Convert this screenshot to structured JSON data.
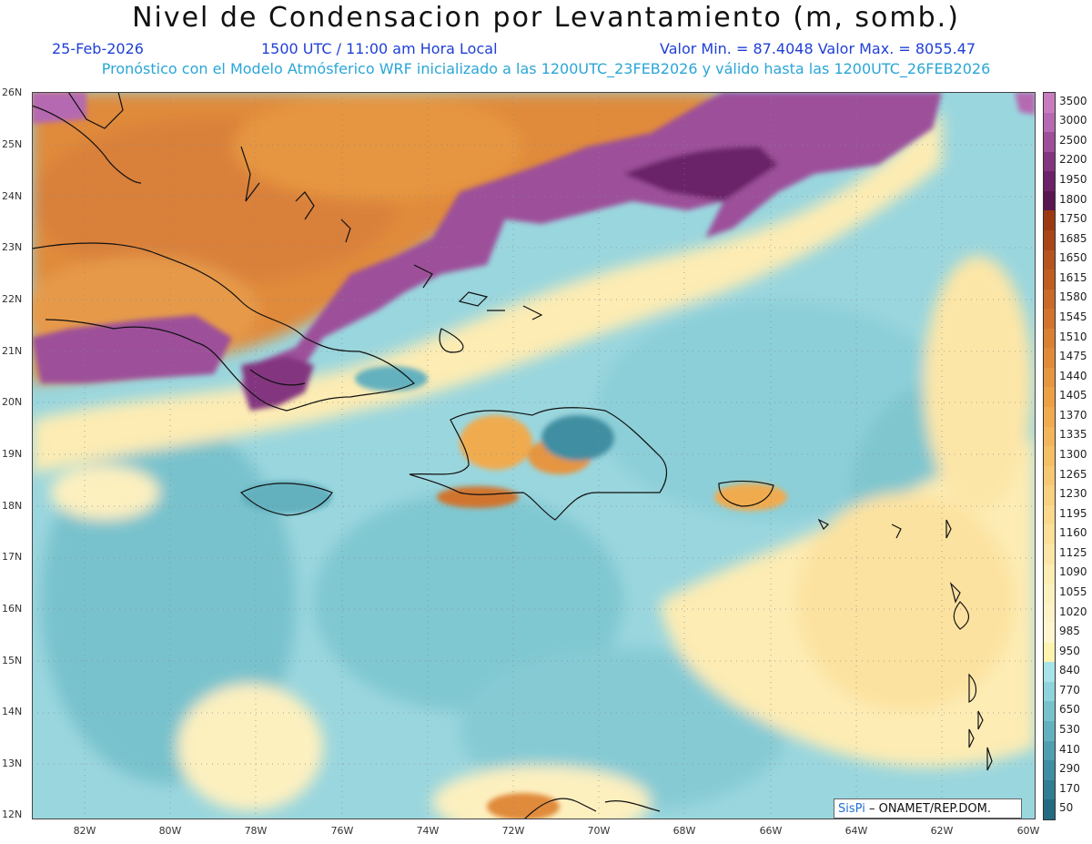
{
  "header": {
    "title": "Nivel de Condensacion por Levantamiento (m, somb.)",
    "date": "25-Feb-2026",
    "time": "1500 UTC / 11:00 am Hora Local",
    "minmax": "Valor Min. = 87.4048  Valor Max. = 8055.47",
    "forecast": "Pronóstico con el Modelo Atmósferico WRF inicializado a las 1200UTC_23FEB2026 y válido hasta las  1200UTC_26FEB2026"
  },
  "axes": {
    "lat_labels": [
      "26N",
      "25N",
      "24N",
      "23N",
      "22N",
      "21N",
      "20N",
      "19N",
      "18N",
      "17N",
      "16N",
      "15N",
      "14N",
      "13N",
      "12N"
    ],
    "lon_labels": [
      "82W",
      "80W",
      "78W",
      "76W",
      "74W",
      "72W",
      "70W",
      "68W",
      "66W",
      "64W",
      "62W",
      "60W"
    ]
  },
  "colorbar": {
    "labels": [
      "3500",
      "3000",
      "2500",
      "2200",
      "1950",
      "1800",
      "1750",
      "1685",
      "1650",
      "1615",
      "1580",
      "1545",
      "1510",
      "1475",
      "1440",
      "1405",
      "1370",
      "1335",
      "1300",
      "1265",
      "1230",
      "1195",
      "1160",
      "1125",
      "1090",
      "1055",
      "1020",
      "985",
      "950",
      "840",
      "770",
      "650",
      "530",
      "410",
      "290",
      "170",
      "50"
    ],
    "colors": [
      "#c77cc0",
      "#b569b0",
      "#9d4f9a",
      "#83367f",
      "#6b2268",
      "#5a1650",
      "#9b3a12",
      "#a8461a",
      "#b65420",
      "#c05d22",
      "#c86a28",
      "#d1742d",
      "#d98033",
      "#e08a3a",
      "#e69540",
      "#eca147",
      "#f0ab50",
      "#f3b55b",
      "#f5bf66",
      "#f7c873",
      "#f9d07f",
      "#fad98c",
      "#fbe09a",
      "#fce6a7",
      "#fdecb4",
      "#fdf0bf",
      "#fef3c8",
      "#fff6d1",
      "#fff3b0",
      "#a8e3ea",
      "#8fd4dd",
      "#78c2cd",
      "#63b1bf",
      "#4f9fb0",
      "#3f8ea1",
      "#317d92",
      "#246b82"
    ]
  },
  "credit": {
    "brand": "SisPi",
    "org": "– ONAMET/REP.DOM."
  }
}
